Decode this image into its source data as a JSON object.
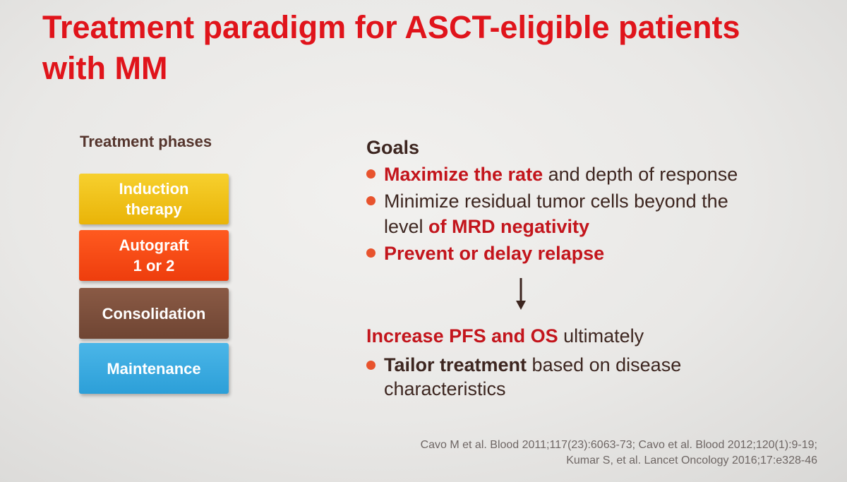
{
  "title": {
    "line1": "Treatment paradigm for ASCT-eligible patients",
    "line2": "with MM"
  },
  "phases": {
    "label": "Treatment phases",
    "items": [
      {
        "line1": "Induction",
        "line2": "therapy"
      },
      {
        "line1": "Autograft",
        "line2": "1 or 2"
      },
      {
        "line1": "Consolidation"
      },
      {
        "line1": "Maintenance"
      }
    ],
    "colors": {
      "induction": "#f0c21a",
      "autograft": "#f44d15",
      "consolidation": "#7c503c",
      "maintenance": "#3aaae0"
    }
  },
  "goals": {
    "heading": "Goals",
    "bullets": [
      {
        "emphasis": "Maximize the rate",
        "rest": " and depth of response"
      },
      {
        "line1": "Minimize residual tumor cells beyond the",
        "line2_plain": "level ",
        "line2_emphasis": "of MRD negativity"
      },
      {
        "emphasis": "Prevent or delay relapse"
      }
    ]
  },
  "arrow_icon": "arrow-down-icon",
  "outcome": {
    "emphasis": "Increase PFS and OS",
    "rest": " ultimately",
    "bullet": {
      "strong": "Tailor treatment",
      "rest": " based on disease",
      "line2": "characteristics"
    }
  },
  "references": {
    "line1": "Cavo M et al. Blood 2011;117(23):6063-73; Cavo et al. Blood 2012;120(1):9-19;",
    "line2": "Kumar S, et al. Lancet Oncology 2016;17:e328-46"
  },
  "colors": {
    "title": "#e0141b",
    "emphasis": "#c3151c",
    "body_text": "#3d2620",
    "bullet_dot": "#e8532d"
  }
}
